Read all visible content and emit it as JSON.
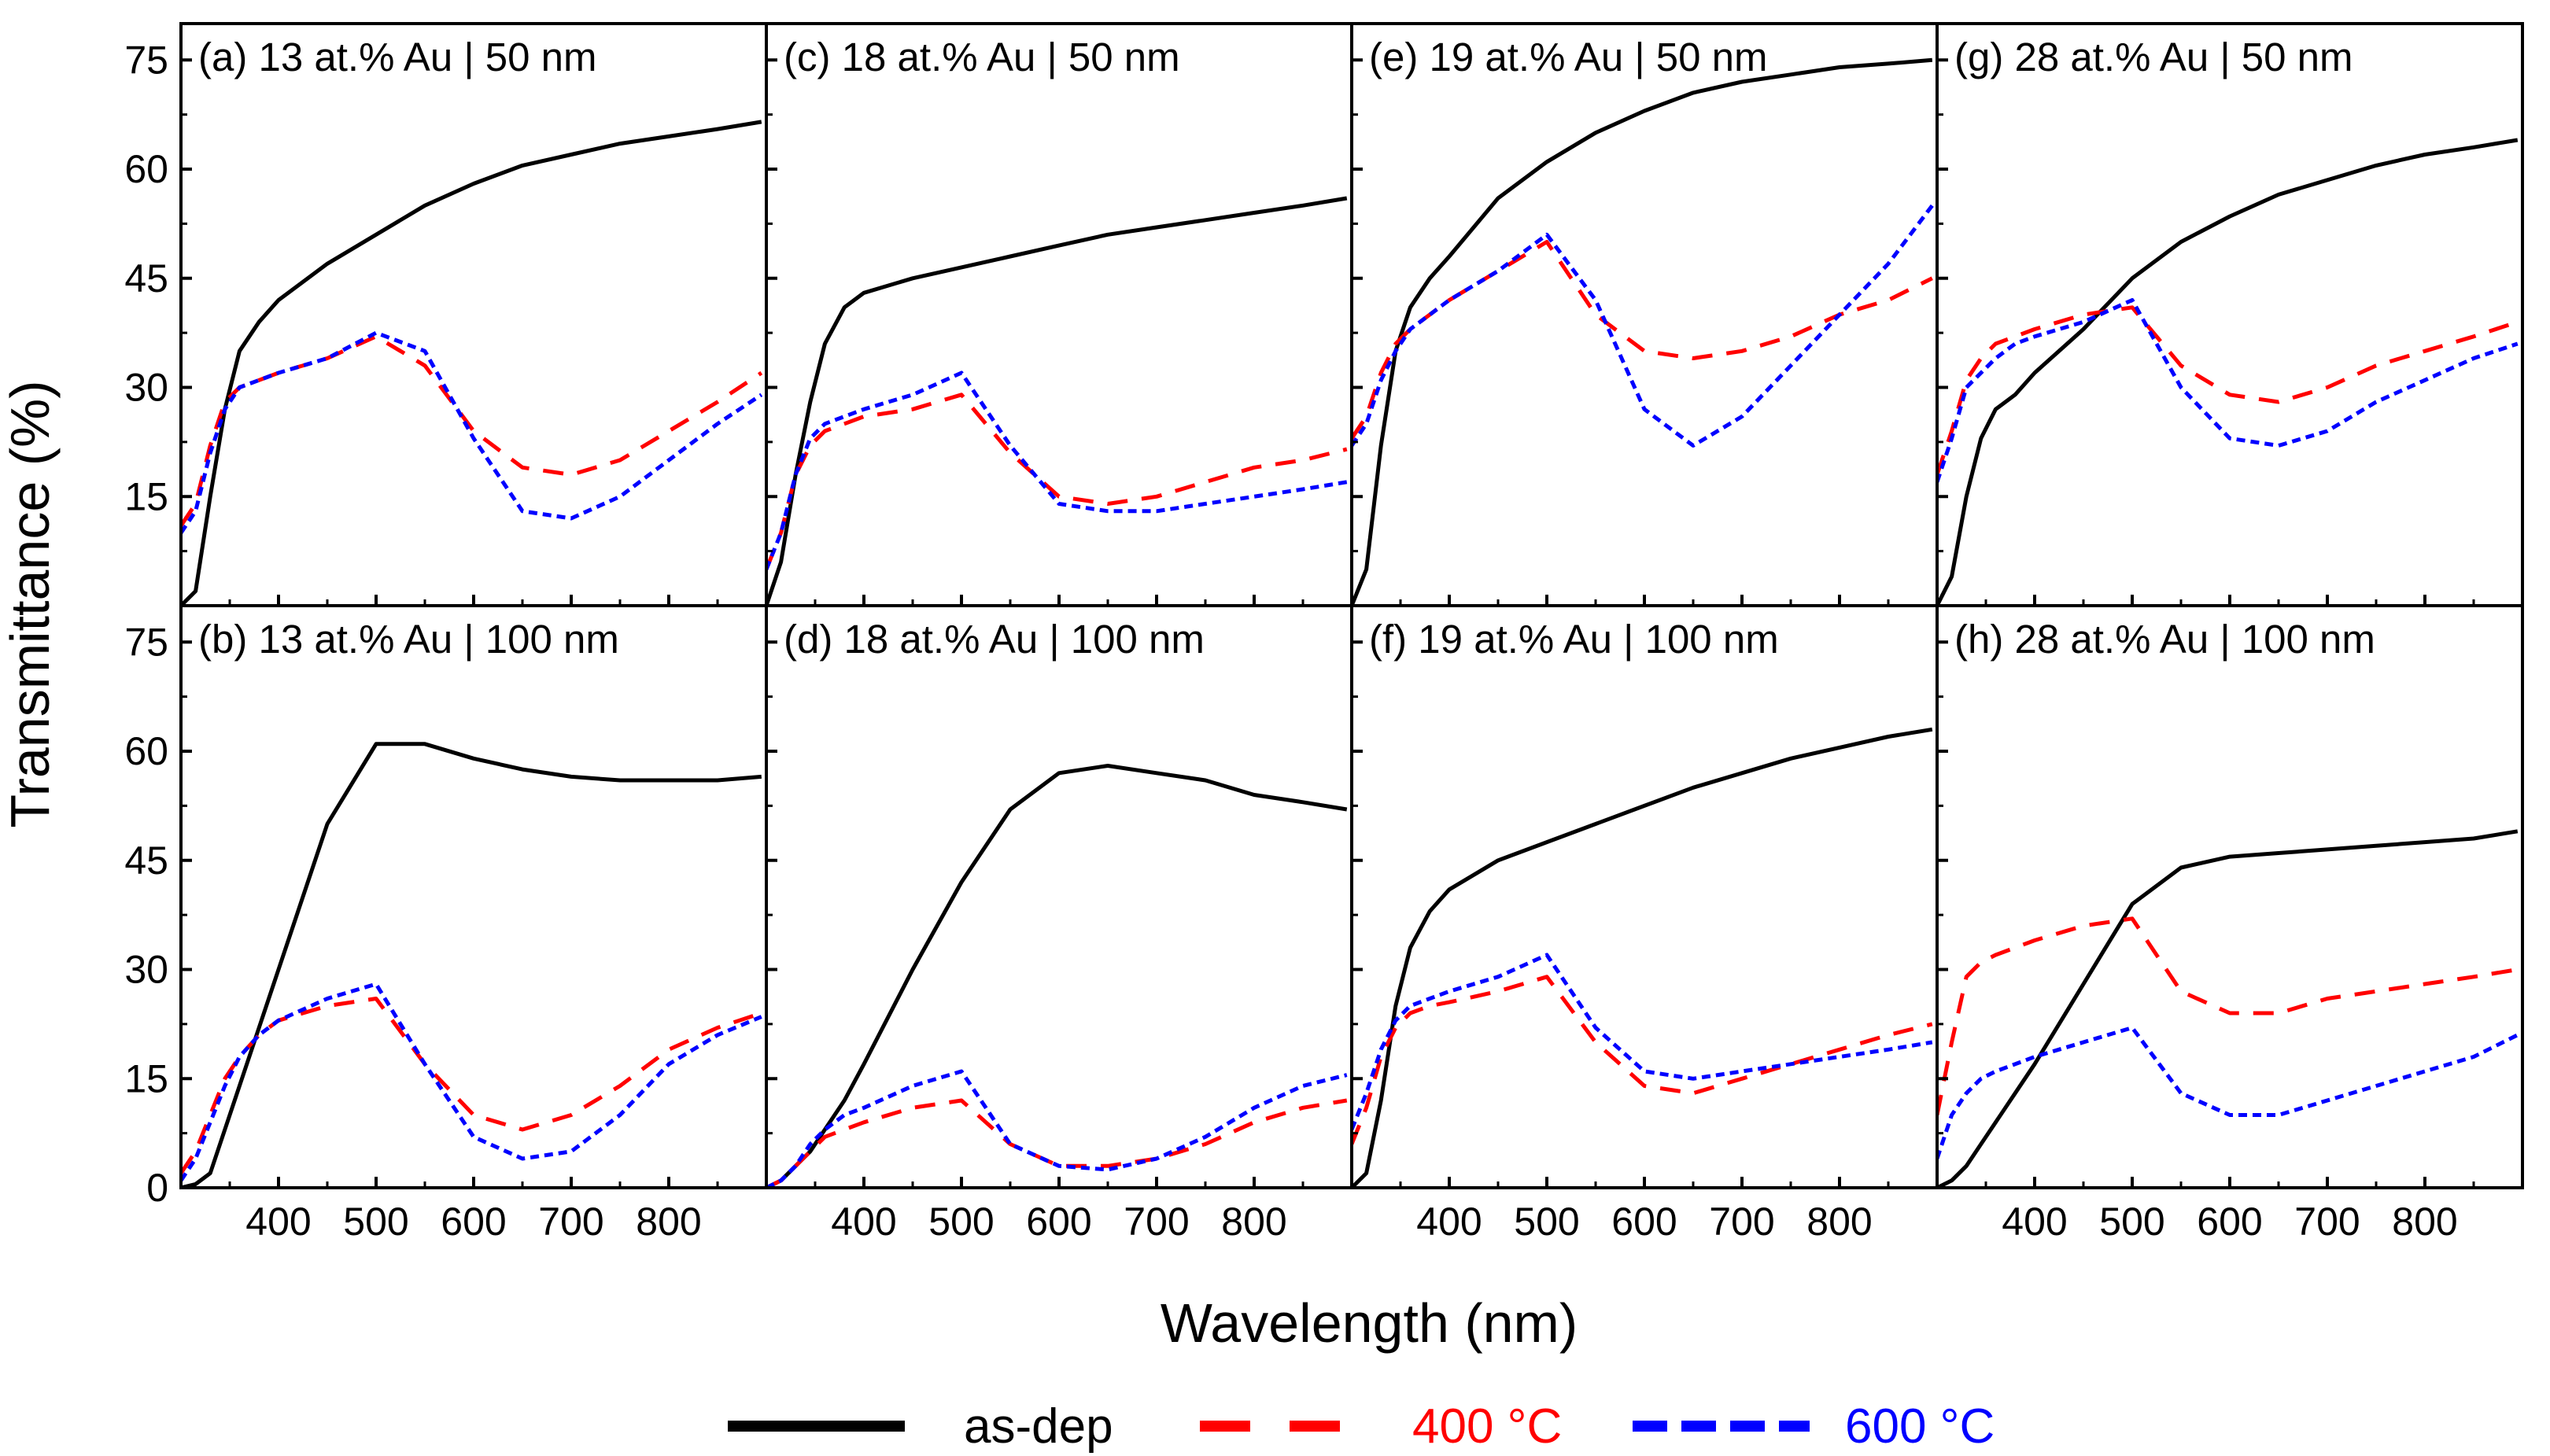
{
  "chart_data": {
    "type": "line",
    "ylabel": "Transmittance (%)",
    "xlabel": "Wavelength (nm)",
    "xlim": [
      300,
      900
    ],
    "ylim": [
      0,
      80
    ],
    "yticks": [
      0,
      15,
      30,
      45,
      60,
      75
    ],
    "xticks": [
      400,
      500,
      600,
      700,
      800
    ],
    "legend": {
      "position": "bottom-center",
      "entries": [
        {
          "name": "as-dep",
          "color": "#000000",
          "style": "solid"
        },
        {
          "name": "400 °C",
          "color": "#ff0000",
          "style": "dashed"
        },
        {
          "name": "600 °C",
          "color": "#0000ff",
          "style": "dotted"
        }
      ]
    },
    "panels": [
      {
        "id": "a",
        "label": "(a) 13 at.% Au | 50 nm",
        "x": [
          300,
          315,
          330,
          345,
          360,
          380,
          400,
          450,
          500,
          550,
          600,
          650,
          700,
          750,
          800,
          850,
          895
        ],
        "series": [
          {
            "name": "as-dep",
            "values": [
              0,
              2,
              15,
              27,
              35,
              39,
              42,
              47,
              51,
              55,
              58,
              60.5,
              62,
              63.5,
              64.5,
              65.5,
              66.5
            ]
          },
          {
            "name": "400 °C",
            "values": [
              11,
              14,
              22,
              28,
              30,
              31,
              32,
              34,
              37,
              33,
              24,
              19,
              18,
              20,
              24,
              28,
              32
            ]
          },
          {
            "name": "600 °C",
            "values": [
              10,
              13,
              21,
              27,
              30,
              31,
              32,
              34,
              37.5,
              35,
              23,
              13,
              12,
              15,
              20,
              25,
              29
            ]
          }
        ]
      },
      {
        "id": "c",
        "label": "(c) 18 at.% Au | 50 nm",
        "x": [
          300,
          315,
          330,
          345,
          360,
          380,
          400,
          450,
          500,
          550,
          600,
          650,
          700,
          750,
          800,
          850,
          895
        ],
        "series": [
          {
            "name": "as-dep",
            "values": [
              0,
              6,
              18,
              28,
              36,
              41,
              43,
              45,
              46.5,
              48,
              49.5,
              51,
              52,
              53,
              54,
              55,
              56
            ]
          },
          {
            "name": "400 °C",
            "values": [
              5,
              10,
              18,
              22,
              24,
              25,
              26,
              27,
              29,
              21,
              15,
              14,
              15,
              17,
              19,
              20,
              21.5
            ]
          },
          {
            "name": "600 °C",
            "values": [
              5,
              10,
              18,
              23,
              25,
              26,
              27,
              29,
              32,
              22,
              14,
              13,
              13,
              14,
              15,
              16,
              17
            ]
          }
        ]
      },
      {
        "id": "e",
        "label": "(e) 19 at.% Au | 50 nm",
        "x": [
          300,
          315,
          330,
          345,
          360,
          380,
          400,
          450,
          500,
          550,
          600,
          650,
          700,
          750,
          800,
          850,
          895
        ],
        "series": [
          {
            "name": "as-dep",
            "values": [
              0,
              5,
              22,
              35,
              41,
              45,
              48,
              56,
              61,
              65,
              68,
              70.5,
              72,
              73,
              74,
              74.5,
              75
            ]
          },
          {
            "name": "400 °C",
            "values": [
              23,
              26,
              32,
              36,
              38,
              40,
              42,
              46,
              50,
              40,
              35,
              34,
              35,
              37,
              40,
              42,
              45
            ]
          },
          {
            "name": "600 °C",
            "values": [
              22,
              25,
              31,
              35,
              38,
              40,
              42,
              46,
              51,
              42,
              27,
              22,
              26,
              33,
              40,
              47,
              55
            ]
          }
        ]
      },
      {
        "id": "g",
        "label": "(g) 28 at.% Au | 50 nm",
        "x": [
          300,
          315,
          330,
          345,
          360,
          380,
          400,
          450,
          500,
          550,
          600,
          650,
          700,
          750,
          800,
          850,
          895
        ],
        "series": [
          {
            "name": "as-dep",
            "values": [
              0,
              4,
              15,
              23,
              27,
              29,
              32,
              38,
              45,
              50,
              53.5,
              56.5,
              58.5,
              60.5,
              62,
              63,
              64
            ]
          },
          {
            "name": "400 °C",
            "values": [
              18,
              24,
              31,
              34,
              36,
              37,
              38,
              40,
              41,
              33,
              29,
              28,
              30,
              33,
              35,
              37,
              39
            ]
          },
          {
            "name": "600 °C",
            "values": [
              17,
              23,
              30,
              32,
              34,
              36,
              37,
              39,
              42,
              30,
              23,
              22,
              24,
              28,
              31,
              34,
              36
            ]
          }
        ]
      },
      {
        "id": "b",
        "label": "(b) 13 at.% Au | 100 nm",
        "x": [
          300,
          315,
          330,
          345,
          360,
          380,
          400,
          450,
          500,
          550,
          600,
          650,
          700,
          750,
          800,
          850,
          895
        ],
        "series": [
          {
            "name": "as-dep",
            "values": [
              0,
              0.5,
              2,
              8,
              14,
              22,
              30,
              50,
              61,
              61,
              59,
              57.5,
              56.5,
              56,
              56,
              56,
              56.5
            ]
          },
          {
            "name": "400 °C",
            "values": [
              2,
              5,
              10,
              15,
              18,
              21,
              23,
              25,
              26,
              17,
              10,
              8,
              10,
              14,
              19,
              22,
              24
            ]
          },
          {
            "name": "600 °C",
            "values": [
              1,
              4,
              9,
              14,
              18,
              21,
              23,
              26,
              28,
              17,
              7,
              4,
              5,
              10,
              17,
              21,
              23.5
            ]
          }
        ]
      },
      {
        "id": "d",
        "label": "(d) 18 at.% Au | 100 nm",
        "x": [
          300,
          315,
          330,
          345,
          360,
          380,
          400,
          450,
          500,
          550,
          600,
          650,
          700,
          750,
          800,
          850,
          895
        ],
        "series": [
          {
            "name": "as-dep",
            "values": [
              0,
              1,
              3,
              5,
              8,
              12,
              17,
              30,
              42,
              52,
              57,
              58,
              57,
              56,
              54,
              53,
              52
            ]
          },
          {
            "name": "400 °C",
            "values": [
              0,
              1,
              3,
              5,
              7,
              8,
              9,
              11,
              12,
              6,
              3,
              3,
              4,
              6,
              9,
              11,
              12
            ]
          },
          {
            "name": "600 °C",
            "values": [
              0,
              1,
              3,
              6,
              8,
              10,
              11,
              14,
              16,
              6,
              3,
              2.5,
              4,
              7,
              11,
              14,
              15.5
            ]
          }
        ]
      },
      {
        "id": "f",
        "label": "(f) 19 at.% Au | 100 nm",
        "x": [
          300,
          315,
          330,
          345,
          360,
          380,
          400,
          450,
          500,
          550,
          600,
          650,
          700,
          750,
          800,
          850,
          895
        ],
        "series": [
          {
            "name": "as-dep",
            "values": [
              0,
              2,
              12,
              25,
              33,
              38,
              41,
              45,
              47.5,
              50,
              52.5,
              55,
              57,
              59,
              60.5,
              62,
              63
            ]
          },
          {
            "name": "400 °C",
            "values": [
              6,
              11,
              18,
              22,
              24,
              25,
              25.5,
              27,
              29,
              20,
              14,
              13,
              15,
              17,
              19,
              21,
              22.5
            ]
          },
          {
            "name": "600 °C",
            "values": [
              8,
              13,
              19,
              23,
              25,
              26,
              27,
              29,
              32,
              22,
              16,
              15,
              16,
              17,
              18,
              19,
              20
            ]
          }
        ]
      },
      {
        "id": "h",
        "label": "(h) 28 at.% Au | 100 nm",
        "x": [
          300,
          315,
          330,
          345,
          360,
          380,
          400,
          450,
          500,
          550,
          600,
          650,
          700,
          750,
          800,
          850,
          895
        ],
        "series": [
          {
            "name": "as-dep",
            "values": [
              0,
              1,
              3,
              6,
              9,
              13,
              17,
              28,
              39,
              44,
              45.5,
              46,
              46.5,
              47,
              47.5,
              48,
              49
            ]
          },
          {
            "name": "400 °C",
            "values": [
              10,
              20,
              29,
              31,
              32,
              33,
              34,
              36,
              37,
              27,
              24,
              24,
              26,
              27,
              28,
              29,
              30
            ]
          },
          {
            "name": "600 °C",
            "values": [
              4,
              10,
              13,
              15,
              16,
              17,
              18,
              20,
              22,
              13,
              10,
              10,
              12,
              14,
              16,
              18,
              21
            ]
          }
        ]
      }
    ]
  }
}
